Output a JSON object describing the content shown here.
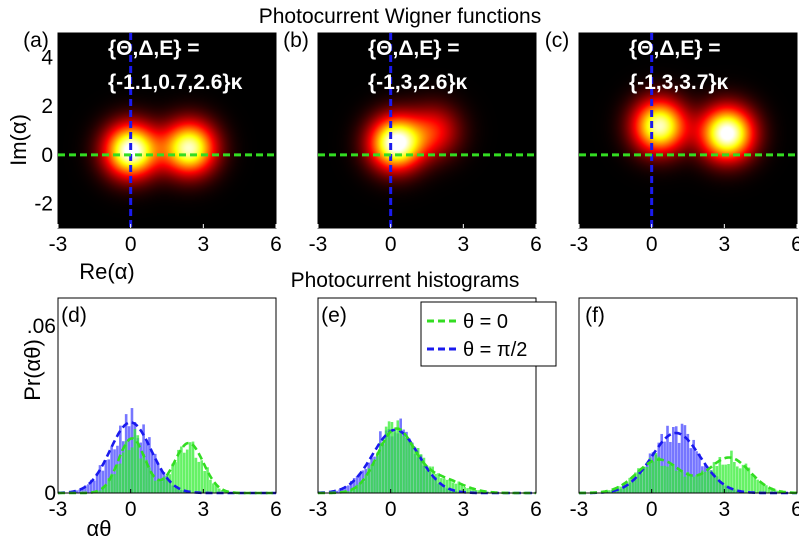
{
  "titles": {
    "top": "Photocurrent Wigner functions",
    "bottom": "Photocurrent histograms"
  },
  "colors": {
    "theta0_line": "#33dd22",
    "theta_pi2_line": "#1a1aee",
    "theta0_hist": "#33ee33",
    "theta_pi2_hist": "#5555ff",
    "heatmap_background": "#000000"
  },
  "wigner_axes": {
    "xlabel": "Re(α)",
    "ylabel": "Im(α)",
    "xlim": [
      -3,
      6
    ],
    "ylim": [
      -3,
      5
    ],
    "xticks": [
      "-3",
      "0",
      "3",
      "6"
    ],
    "yticks": [
      "4",
      "2",
      "0",
      "-2"
    ]
  },
  "hist_axes": {
    "xlabel": "αθ",
    "ylabel": "Pr(αθ)",
    "xlim": [
      -3,
      6
    ],
    "ylim": [
      0,
      0.07
    ],
    "xticks": [
      "-3",
      "0",
      "3",
      "6"
    ],
    "yticks": [
      ".06",
      "0"
    ]
  },
  "legend": {
    "theta0": "θ = 0",
    "theta_pi2": "θ = π/2"
  },
  "chart_data": [
    {
      "type": "heatmap",
      "panel": "(a)",
      "param_line1": "{Θ,Δ,E} =",
      "param_line2": "{-1.1,0.7,2.6}κ",
      "peaks": [
        {
          "re": 0.0,
          "im": 0.2,
          "amp": 1.0
        },
        {
          "re": 2.4,
          "im": 0.3,
          "amp": 0.9
        }
      ]
    },
    {
      "type": "heatmap",
      "panel": "(b)",
      "param_line1": "{Θ,Δ,E} =",
      "param_line2": "{-1,3,2.6}κ",
      "peaks": [
        {
          "re": 0.2,
          "im": 0.5,
          "amp": 1.0
        },
        {
          "re": 1.8,
          "im": 1.0,
          "amp": 0.35
        }
      ]
    },
    {
      "type": "heatmap",
      "panel": "(c)",
      "param_line1": "{Θ,Δ,E} =",
      "param_line2": "{-1,3,3.7}κ",
      "peaks": [
        {
          "re": 0.3,
          "im": 1.2,
          "amp": 0.9
        },
        {
          "re": 3.1,
          "im": 0.9,
          "amp": 1.0
        }
      ]
    },
    {
      "type": "bar",
      "panel": "(d)",
      "series": [
        {
          "name": "θ = 0",
          "components": [
            {
              "mu": 0.05,
              "sigma": 0.55,
              "w": 0.5
            },
            {
              "mu": 2.4,
              "sigma": 0.6,
              "w": 0.5
            }
          ]
        },
        {
          "name": "θ = π/2",
          "components": [
            {
              "mu": 0.0,
              "sigma": 0.85,
              "w": 1.0
            }
          ]
        }
      ]
    },
    {
      "type": "bar",
      "panel": "(e)",
      "series": [
        {
          "name": "θ = 0",
          "components": [
            {
              "mu": 0.2,
              "sigma": 0.75,
              "w": 0.78
            },
            {
              "mu": 2.0,
              "sigma": 0.9,
              "w": 0.22
            }
          ]
        },
        {
          "name": "θ = π/2",
          "components": [
            {
              "mu": 0.2,
              "sigma": 0.95,
              "w": 1.0
            }
          ]
        }
      ]
    },
    {
      "type": "bar",
      "panel": "(f)",
      "series": [
        {
          "name": "θ = 0",
          "components": [
            {
              "mu": 0.3,
              "sigma": 0.9,
              "w": 0.5
            },
            {
              "mu": 3.2,
              "sigma": 0.85,
              "w": 0.5
            }
          ]
        },
        {
          "name": "θ = π/2",
          "components": [
            {
              "mu": 1.0,
              "sigma": 1.0,
              "w": 1.0
            }
          ]
        }
      ]
    }
  ]
}
